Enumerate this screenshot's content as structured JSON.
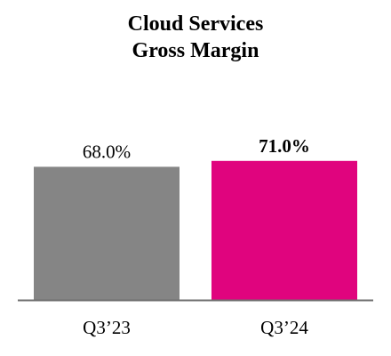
{
  "chart_data": {
    "type": "bar",
    "title_lines": [
      "Cloud Services",
      "Gross Margin"
    ],
    "categories": [
      "Q3’23",
      "Q3’24"
    ],
    "values": [
      68.0,
      71.0
    ],
    "value_labels": [
      "68.0%",
      "71.0%"
    ],
    "colors": [
      "#858585",
      "#E0047E"
    ],
    "bold_labels": [
      false,
      true
    ],
    "xlabel": "",
    "ylabel": "",
    "grid": false,
    "legend": "none"
  }
}
